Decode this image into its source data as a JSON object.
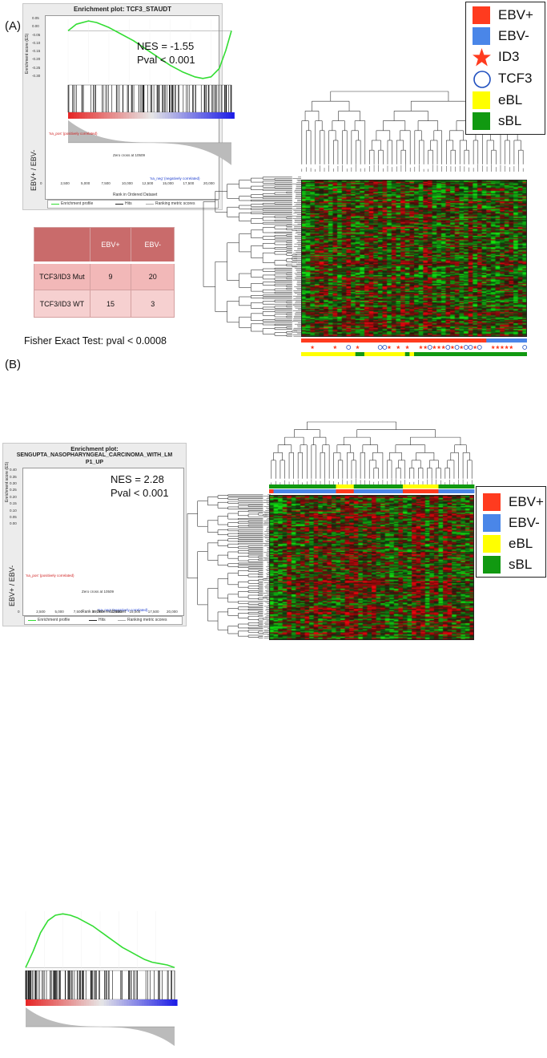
{
  "panelA": {
    "label": "(A)",
    "gsea": {
      "title": "Enrichment plot: TCF3_STAUDT",
      "nes": "NES = -1.55",
      "pval": "Pval < 0.001",
      "ylabel": "Enrichment score (ES)",
      "yticks": [
        "0.05",
        "0.00",
        "-0.05",
        "-0.10",
        "-0.15",
        "-0.20",
        "-0.25",
        "-0.30"
      ],
      "xticks": [
        "0",
        "2,500",
        "5,000",
        "7,500",
        "10,000",
        "12,500",
        "15,000",
        "17,500",
        "20,000"
      ],
      "xlabel": "Rank in Ordered Dataset",
      "pos_label": "'na_pos' (positively correlated)",
      "neg_label": "'na_neg' (negatively correlated)",
      "zero_cross": "Zero cross at 10509",
      "side_label": "EBV+ / EBV-",
      "legend": [
        "Enrichment profile",
        "Hits",
        "Ranking metric scores"
      ],
      "es_curve": {
        "x": [
          0,
          1000,
          2500,
          3500,
          5000,
          6500,
          8000,
          9500,
          11000,
          12500,
          14000,
          15500,
          16500,
          17500,
          18500,
          19300,
          20000
        ],
        "y": [
          0.0,
          0.04,
          0.06,
          0.05,
          0.02,
          -0.02,
          -0.06,
          -0.11,
          -0.16,
          -0.21,
          -0.25,
          -0.28,
          -0.29,
          -0.28,
          -0.23,
          -0.12,
          0.0
        ]
      }
    },
    "fisher": {
      "headers": [
        "",
        "EBV+",
        "EBV-"
      ],
      "rows": [
        [
          "TCF3/ID3 Mut",
          "9",
          "20"
        ],
        [
          "TCF3/ID3 WT",
          "15",
          "3"
        ]
      ],
      "caption": "Fisher Exact Test: pval < 0.0008"
    },
    "legend": [
      {
        "label": "EBV+",
        "shape": "square",
        "color": "#ff3b1f"
      },
      {
        "label": "EBV-",
        "shape": "square",
        "color": "#4a86e8"
      },
      {
        "label": "ID3",
        "shape": "star-icon",
        "color": "#ff3b1f"
      },
      {
        "label": "TCF3",
        "shape": "circle-icon",
        "color": "#1f4fbf"
      },
      {
        "label": "eBL",
        "shape": "square",
        "color": "#ffff00"
      },
      {
        "label": "sBL",
        "shape": "square",
        "color": "#119911"
      }
    ]
  },
  "panelB": {
    "label": "(B)",
    "gsea": {
      "title_line1": "Enrichment plot:",
      "title_line2": "SENGUPTA_NASOPHARYNGEAL_CARCINOMA_WITH_LM",
      "title_line3": "P1_UP",
      "nes": "NES = 2.28",
      "pval": "Pval < 0.001",
      "ylabel": "Enrichment score (ES)",
      "yticks": [
        "0.40",
        "0.35",
        "0.30",
        "0.25",
        "0.20",
        "0.15",
        "0.10",
        "0.05",
        "0.00"
      ],
      "xticks": [
        "0",
        "2,500",
        "5,000",
        "7,500",
        "10,000",
        "12,500",
        "15,000",
        "17,500",
        "20,000"
      ],
      "xlabel": "Rank in Ordered Dataset",
      "pos_label": "'na_pos' (positively correlated)",
      "neg_label": "'na_neg' (negatively correlated)",
      "zero_cross": "Zero cross at 10509",
      "side_label": "EBV+ / EBV-",
      "legend": [
        "Enrichment profile",
        "Hits",
        "Ranking metric scores"
      ],
      "es_curve": {
        "x": [
          0,
          1000,
          2000,
          3000,
          4000,
          5000,
          6000,
          7000,
          8000,
          9000,
          10000,
          11000,
          12000,
          13000,
          14000,
          15000,
          16000,
          17000,
          18000,
          19000,
          20000
        ],
        "y": [
          0.0,
          0.12,
          0.26,
          0.35,
          0.39,
          0.4,
          0.39,
          0.37,
          0.34,
          0.31,
          0.27,
          0.23,
          0.19,
          0.15,
          0.12,
          0.09,
          0.06,
          0.04,
          0.03,
          0.02,
          0.0
        ]
      }
    },
    "legend": [
      {
        "label": "EBV+",
        "shape": "square",
        "color": "#ff3b1f"
      },
      {
        "label": "EBV-",
        "shape": "square",
        "color": "#4a86e8"
      },
      {
        "label": "eBL",
        "shape": "square",
        "color": "#ffff00"
      },
      {
        "label": "sBL",
        "shape": "square",
        "color": "#119911"
      }
    ]
  },
  "colors": {
    "heat_red": "#e0200f",
    "heat_green": "#20c020",
    "es_line": "#33dd33",
    "fisher_header": "#c96b6b",
    "fisher_row": "#f2b8b8"
  }
}
